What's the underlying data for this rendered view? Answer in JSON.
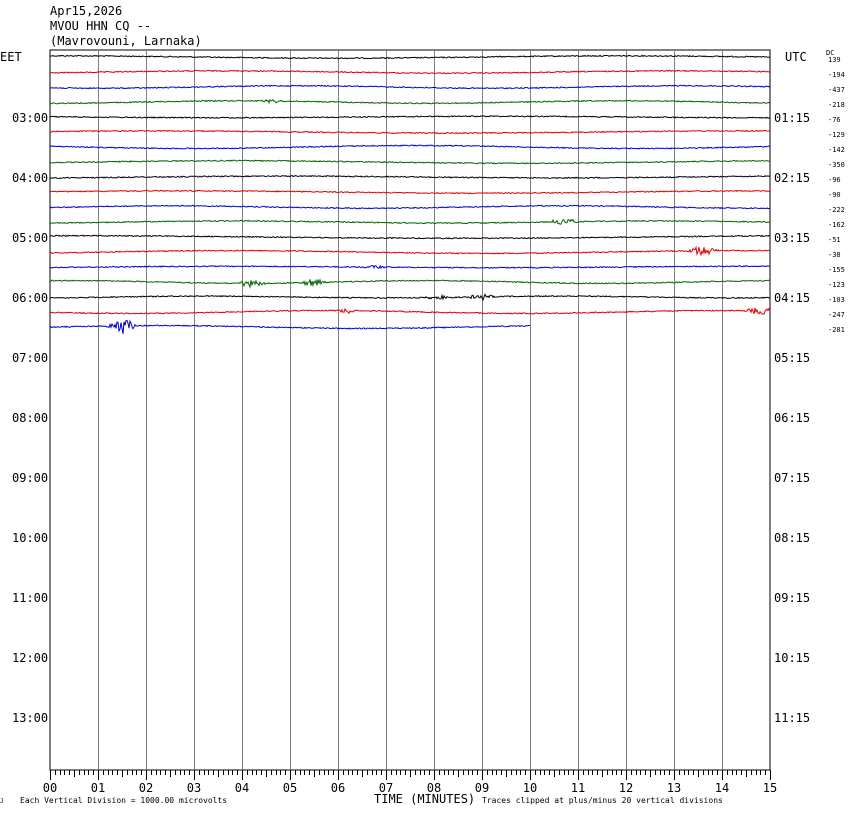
{
  "header": {
    "date": "Apr15,2026",
    "station": "MVOU HHN CQ --",
    "location": "(Mavrovouni, Larnaka)"
  },
  "left_timezone": "EET",
  "right_timezone": "UTC",
  "dc_label": "DC",
  "corner_mark": "J",
  "footer": {
    "scale_note": "Each Vertical Division = 1000.00 microvolts",
    "xaxis_title": "TIME (MINUTES)",
    "clip_note": "Traces clipped at plus/minus 20 vertical divisions"
  },
  "colors": {
    "cycle": [
      "#000000",
      "#e00000",
      "#0000d0",
      "#006600"
    ],
    "grid": "#808080"
  },
  "chart_data": {
    "type": "line",
    "title": "Apr15,2026 MVOU HHN CQ -- (Mavrovouni, Larnaka)",
    "xlabel": "TIME (MINUTES)",
    "x_ticks": [
      "00",
      "01",
      "02",
      "03",
      "04",
      "05",
      "06",
      "07",
      "08",
      "09",
      "10",
      "11",
      "12",
      "13",
      "14",
      "15"
    ],
    "xlim": [
      0,
      15
    ],
    "rows_per_hour": 4,
    "left_hour_labels": [
      "03:00",
      "04:00",
      "05:00",
      "06:00",
      "07:00",
      "08:00",
      "09:00",
      "10:00",
      "11:00",
      "12:00",
      "13:00"
    ],
    "right_hour_labels": [
      "01:15",
      "02:15",
      "03:15",
      "04:15",
      "05:15",
      "06:15",
      "07:15",
      "08:15",
      "09:15",
      "10:15",
      "11:15"
    ],
    "traces": [
      {
        "dc": "139",
        "events": []
      },
      {
        "dc": "-194",
        "events": []
      },
      {
        "dc": "-437",
        "events": []
      },
      {
        "dc": "-218",
        "events": [
          {
            "t": 4.6,
            "amp": 2
          }
        ]
      },
      {
        "dc": "-76",
        "events": []
      },
      {
        "dc": "-129",
        "events": []
      },
      {
        "dc": "-142",
        "events": []
      },
      {
        "dc": "-350",
        "events": []
      },
      {
        "dc": "-96",
        "events": []
      },
      {
        "dc": "-90",
        "events": []
      },
      {
        "dc": "-222",
        "events": []
      },
      {
        "dc": "-162",
        "events": [
          {
            "t": 10.7,
            "amp": 4
          }
        ]
      },
      {
        "dc": "-51",
        "events": []
      },
      {
        "dc": "-38",
        "events": [
          {
            "t": 13.6,
            "amp": 6
          }
        ]
      },
      {
        "dc": "-155",
        "events": [
          {
            "t": 6.8,
            "amp": 2
          }
        ]
      },
      {
        "dc": "-123",
        "events": [
          {
            "t": 4.2,
            "amp": 4
          },
          {
            "t": 5.5,
            "amp": 4
          }
        ]
      },
      {
        "dc": "-103",
        "events": [
          {
            "t": 8.1,
            "amp": 2
          },
          {
            "t": 9.0,
            "amp": 3
          }
        ]
      },
      {
        "dc": "-247",
        "events": [
          {
            "t": 6.2,
            "amp": 3
          },
          {
            "t": 14.8,
            "amp": 5
          }
        ]
      },
      {
        "dc": "-281",
        "events": [
          {
            "t": 1.5,
            "amp": 9
          }
        ]
      }
    ],
    "last_trace_end_minute": 10
  }
}
